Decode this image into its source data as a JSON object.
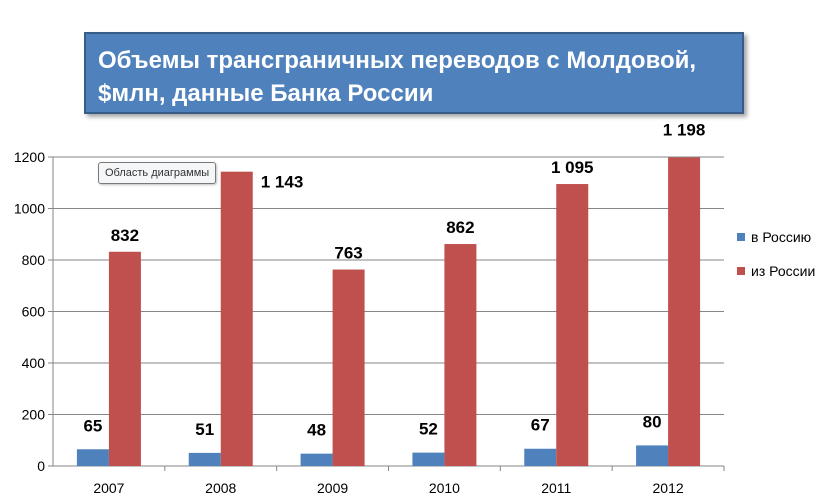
{
  "title": "Объемы трансграничных переводов с Молдовой, $млн, данные Банка России",
  "tooltip": "Область диаграммы",
  "colors": {
    "title_bg": "#4f81bd",
    "series_to_russia": "#4f81bd",
    "series_from_russia": "#c0504d"
  },
  "chart_data": {
    "type": "bar",
    "title": "Объемы трансграничных переводов с Молдовой, $млн, данные Банка России",
    "categories": [
      "2007",
      "2008",
      "2009",
      "2010",
      "2011",
      "2012"
    ],
    "series": [
      {
        "name": "в Россию",
        "values": [
          65,
          51,
          48,
          52,
          67,
          80
        ],
        "labels": [
          "65",
          "51",
          "48",
          "52",
          "67",
          "80"
        ]
      },
      {
        "name": "из России",
        "values": [
          832,
          1143,
          763,
          862,
          1095,
          1198
        ],
        "labels": [
          "832",
          "1 143",
          "763",
          "862",
          "1 095",
          "1 198"
        ]
      }
    ],
    "ylim": [
      0,
      1200
    ],
    "yticks": [
      "0",
      "200",
      "400",
      "600",
      "800",
      "1000",
      "1200"
    ],
    "grid": true,
    "legend": "right"
  }
}
